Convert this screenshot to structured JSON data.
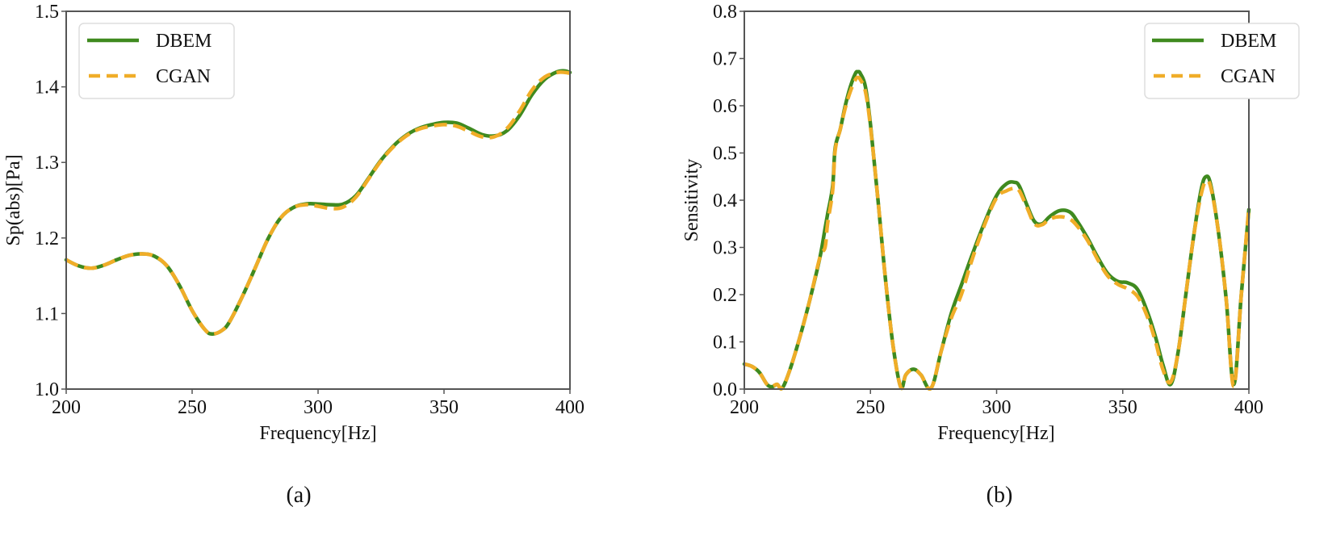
{
  "colors": {
    "dbem": "#3f8a1f",
    "cgan": "#f0ad28",
    "axis": "#555555",
    "legend_border": "#dddddd"
  },
  "chart_data": [
    {
      "type": "line",
      "panel_caption": "(a)",
      "title": "",
      "xlabel": "Frequency[Hz]",
      "ylabel": "Sp(abs)[Pa]",
      "xlim": [
        200,
        400
      ],
      "ylim": [
        1.0,
        1.5
      ],
      "xticks": [
        "200",
        "250",
        "300",
        "350",
        "400"
      ],
      "yticks": [
        "1.0",
        "1.1",
        "1.2",
        "1.3",
        "1.4",
        "1.5"
      ],
      "grid": false,
      "legend_position": "upper left",
      "legend": [
        "DBEM",
        "CGAN"
      ],
      "series": [
        {
          "name": "DBEM",
          "style": "solid",
          "x": [
            200,
            205,
            210,
            215,
            220,
            225,
            230,
            235,
            240,
            245,
            250,
            255,
            258,
            262,
            265,
            270,
            275,
            280,
            285,
            290,
            295,
            300,
            305,
            310,
            315,
            320,
            325,
            330,
            335,
            340,
            345,
            350,
            355,
            360,
            365,
            370,
            375,
            380,
            385,
            390,
            395,
            398,
            400
          ],
          "y": [
            1.171,
            1.163,
            1.16,
            1.164,
            1.171,
            1.177,
            1.179,
            1.176,
            1.163,
            1.137,
            1.104,
            1.079,
            1.073,
            1.078,
            1.09,
            1.123,
            1.16,
            1.198,
            1.226,
            1.24,
            1.245,
            1.245,
            1.244,
            1.245,
            1.256,
            1.279,
            1.303,
            1.322,
            1.336,
            1.345,
            1.35,
            1.353,
            1.352,
            1.345,
            1.337,
            1.335,
            1.342,
            1.362,
            1.39,
            1.41,
            1.42,
            1.421,
            1.419
          ]
        },
        {
          "name": "CGAN",
          "style": "dashed",
          "x": [
            200,
            205,
            210,
            215,
            220,
            225,
            230,
            235,
            240,
            245,
            250,
            255,
            258,
            262,
            265,
            270,
            275,
            280,
            285,
            290,
            295,
            300,
            305,
            310,
            315,
            320,
            325,
            330,
            335,
            340,
            345,
            350,
            355,
            360,
            365,
            370,
            375,
            380,
            385,
            390,
            395,
            398,
            400
          ],
          "y": [
            1.171,
            1.163,
            1.16,
            1.164,
            1.171,
            1.177,
            1.179,
            1.176,
            1.163,
            1.137,
            1.104,
            1.079,
            1.073,
            1.078,
            1.09,
            1.123,
            1.16,
            1.198,
            1.226,
            1.24,
            1.244,
            1.242,
            1.239,
            1.241,
            1.254,
            1.278,
            1.302,
            1.321,
            1.335,
            1.344,
            1.348,
            1.35,
            1.348,
            1.341,
            1.334,
            1.334,
            1.345,
            1.368,
            1.396,
            1.413,
            1.419,
            1.419,
            1.418
          ]
        }
      ]
    },
    {
      "type": "line",
      "panel_caption": "(b)",
      "title": "",
      "xlabel": "Frequency[Hz]",
      "ylabel": "Sensitivity",
      "xlim": [
        200,
        400
      ],
      "ylim": [
        0.0,
        0.8
      ],
      "xticks": [
        "200",
        "250",
        "300",
        "350",
        "400"
      ],
      "yticks": [
        "0.0",
        "0.1",
        "0.2",
        "0.3",
        "0.4",
        "0.5",
        "0.6",
        "0.7",
        "0.8"
      ],
      "grid": false,
      "legend_position": "upper right",
      "legend": [
        "DBEM",
        "CGAN"
      ],
      "series": [
        {
          "name": "DBEM",
          "style": "solid",
          "x": [
            200,
            203,
            206,
            209,
            211,
            213,
            215,
            218,
            222,
            226,
            230,
            232,
            233,
            235,
            236,
            238,
            240,
            242,
            244,
            245,
            246,
            248,
            250,
            253,
            256,
            259,
            262,
            264,
            267,
            270,
            274,
            278,
            282,
            286,
            290,
            295,
            300,
            304,
            307,
            309,
            312,
            315,
            318,
            321,
            325,
            329,
            332,
            336,
            340,
            344,
            348,
            352,
            356,
            360,
            363,
            366,
            369,
            372,
            375,
            378,
            381,
            383,
            385,
            388,
            391,
            394,
            397,
            400
          ],
          "y": [
            0.053,
            0.048,
            0.035,
            0.01,
            0.005,
            0.01,
            0.002,
            0.04,
            0.11,
            0.19,
            0.28,
            0.34,
            0.37,
            0.43,
            0.51,
            0.55,
            0.6,
            0.64,
            0.668,
            0.672,
            0.668,
            0.64,
            0.56,
            0.4,
            0.23,
            0.09,
            0.004,
            0.03,
            0.042,
            0.03,
            0.002,
            0.08,
            0.16,
            0.22,
            0.28,
            0.35,
            0.41,
            0.435,
            0.438,
            0.43,
            0.39,
            0.355,
            0.35,
            0.365,
            0.378,
            0.375,
            0.355,
            0.32,
            0.28,
            0.245,
            0.228,
            0.225,
            0.21,
            0.16,
            0.11,
            0.05,
            0.01,
            0.08,
            0.2,
            0.32,
            0.42,
            0.45,
            0.43,
            0.33,
            0.19,
            0.01,
            0.2,
            0.38
          ]
        },
        {
          "name": "CGAN",
          "style": "dashed",
          "x": [
            200,
            203,
            206,
            209,
            211,
            213,
            215,
            218,
            222,
            226,
            230,
            232,
            233,
            235,
            236,
            238,
            240,
            242,
            244,
            245,
            246,
            248,
            250,
            253,
            256,
            259,
            262,
            264,
            267,
            270,
            274,
            278,
            282,
            286,
            290,
            295,
            300,
            304,
            307,
            309,
            312,
            315,
            318,
            321,
            325,
            329,
            332,
            336,
            340,
            344,
            348,
            352,
            356,
            360,
            363,
            366,
            369,
            372,
            375,
            378,
            381,
            383,
            385,
            388,
            391,
            394,
            397,
            400
          ],
          "y": [
            0.053,
            0.048,
            0.035,
            0.01,
            0.006,
            0.01,
            0.002,
            0.04,
            0.11,
            0.19,
            0.28,
            0.3,
            0.35,
            0.42,
            0.505,
            0.55,
            0.595,
            0.63,
            0.655,
            0.66,
            0.655,
            0.63,
            0.555,
            0.4,
            0.23,
            0.09,
            0.004,
            0.03,
            0.042,
            0.03,
            0.002,
            0.08,
            0.15,
            0.2,
            0.27,
            0.345,
            0.405,
            0.42,
            0.425,
            0.42,
            0.385,
            0.35,
            0.348,
            0.36,
            0.365,
            0.36,
            0.345,
            0.315,
            0.275,
            0.24,
            0.222,
            0.212,
            0.195,
            0.15,
            0.1,
            0.04,
            0.015,
            0.08,
            0.2,
            0.32,
            0.41,
            0.44,
            0.425,
            0.33,
            0.19,
            0.006,
            0.2,
            0.385
          ]
        }
      ]
    }
  ]
}
